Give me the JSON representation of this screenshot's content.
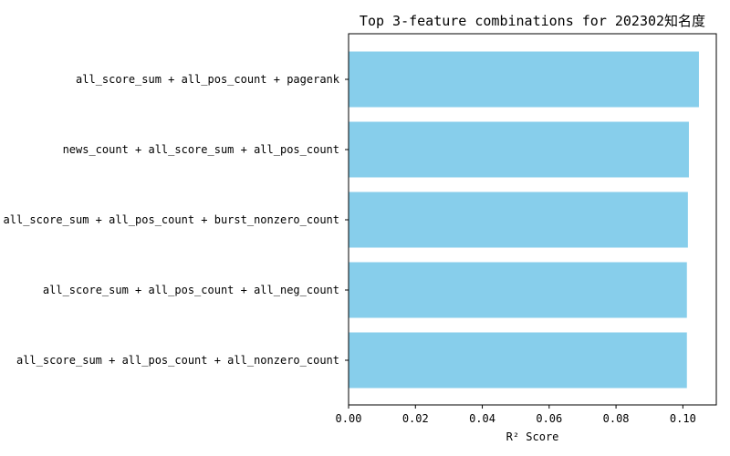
{
  "chart_data": {
    "type": "bar",
    "orientation": "horizontal",
    "title": "Top 3-feature combinations for 202302知名度",
    "xlabel": "R² Score",
    "ylabel": "",
    "categories": [
      "all_score_sum + all_pos_count + pagerank",
      "news_count + all_score_sum + all_pos_count",
      "all_score_sum + all_pos_count + burst_nonzero_count",
      "all_score_sum + all_pos_count + all_neg_count",
      "all_score_sum + all_pos_count + all_nonzero_count"
    ],
    "values": [
      0.1048,
      0.1018,
      0.1015,
      0.1012,
      0.1012
    ],
    "xlim": [
      0,
      0.11
    ],
    "xticks": [
      "0.00",
      "0.02",
      "0.04",
      "0.06",
      "0.08",
      "0.10"
    ],
    "xtick_values": [
      0,
      0.02,
      0.04,
      0.06,
      0.08,
      0.1
    ],
    "grid": false,
    "legend": "none",
    "bar_color": "#87ceeb"
  }
}
